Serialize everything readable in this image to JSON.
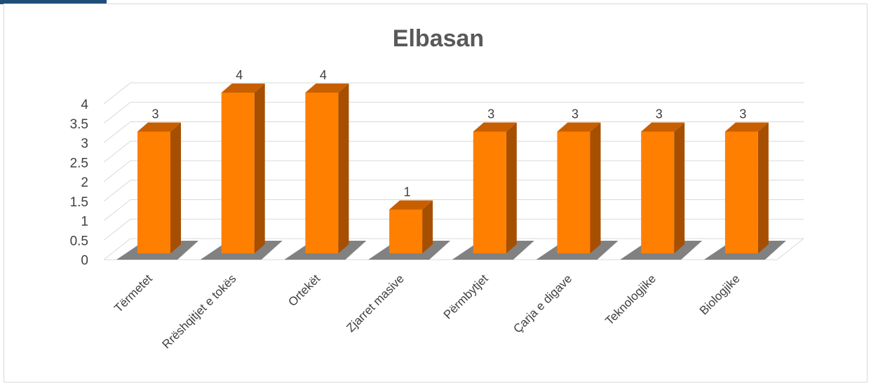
{
  "chart_data": {
    "type": "bar",
    "style": "3d-column",
    "title": "Elbasan",
    "categories": [
      "Tërmetet",
      "Rrëshqitjet e tokës",
      "Ortekët",
      "Zjarret masive",
      "Përmbytjet",
      "Çarja e digave",
      "Teknologjike",
      "Biologjike"
    ],
    "values": [
      3,
      4,
      4,
      1,
      3,
      3,
      3,
      3
    ],
    "data_labels": [
      "3",
      "4",
      "4",
      "1",
      "3",
      "3",
      "3",
      "3"
    ],
    "y_ticks": [
      "0",
      "0.5",
      "1",
      "1.5",
      "2",
      "2.5",
      "3",
      "3.5",
      "4"
    ],
    "ylim": [
      0,
      4
    ],
    "grid": true,
    "legend": "none",
    "colors": {
      "bar_front": "#ff7f00",
      "bar_side": "#a64f00",
      "bar_top": "#c75f00",
      "grid": "#d9d9d9",
      "text": "#404040",
      "title": "#595959",
      "accent": "#1f4e79"
    }
  }
}
